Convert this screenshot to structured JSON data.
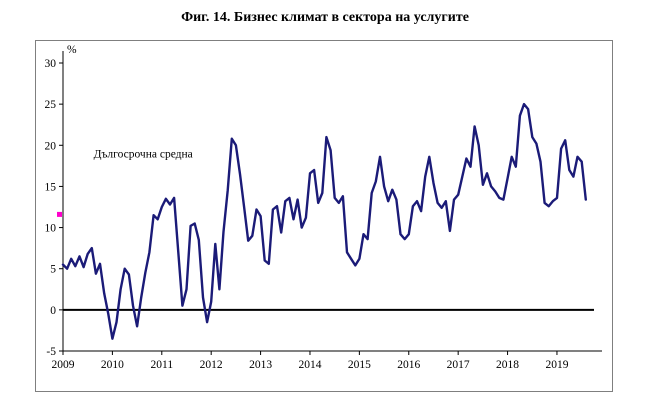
{
  "page": {
    "title": "Фиг. 14. Бизнес климат в сектора на услугите"
  },
  "colors": {
    "series_line": "#1b1b78",
    "axis": "#000000",
    "zero_line": "#000000",
    "frame": "#7f7f7f",
    "long_term_marker": "#ff00cc",
    "background": "#ffffff"
  },
  "chart_data": {
    "type": "line",
    "title": "Фиг. 14. Бизнес климат в сектора на услугите",
    "ylabel": "%",
    "xlabel": "",
    "ylim": [
      -5,
      30
    ],
    "ytick_step": 5,
    "y_tick_labels": [
      "-5",
      "0",
      "5",
      "10",
      "15",
      "20",
      "25",
      "30"
    ],
    "x_tick_labels": [
      "2009",
      "2010",
      "2011",
      "2012",
      "2013",
      "2014",
      "2015",
      "2016",
      "2017",
      "2018",
      "2019"
    ],
    "x_start_year": 2009,
    "x_end": 2019.75,
    "frequency": "monthly",
    "grid": false,
    "zero_line": true,
    "legend_position": "none",
    "annotation": {
      "text": "Дългосрочна средна",
      "x": 2009.62,
      "y": 18.5
    },
    "long_term_average_marker": {
      "y": 11.6,
      "color": "#ff00cc"
    },
    "series": [
      {
        "name": "Бизнес климат в сектора на услугите",
        "color": "#1b1b78",
        "start": "2009-01",
        "values": [
          5.5,
          5.0,
          6.2,
          5.3,
          6.5,
          5.2,
          6.8,
          7.5,
          4.4,
          5.6,
          2.0,
          -0.5,
          -3.5,
          -1.5,
          2.5,
          5.0,
          4.3,
          0.5,
          -2.0,
          1.5,
          4.5,
          7.0,
          11.5,
          11.0,
          12.5,
          13.5,
          12.8,
          13.6,
          7.0,
          0.5,
          2.5,
          10.2,
          10.5,
          8.5,
          1.5,
          -1.5,
          1.0,
          8.0,
          2.5,
          9.5,
          14.5,
          20.8,
          20.0,
          16.5,
          12.5,
          8.4,
          9.0,
          12.2,
          11.4,
          6.0,
          5.6,
          12.2,
          12.6,
          9.4,
          13.2,
          13.6,
          11.0,
          13.4,
          10.0,
          11.2,
          16.6,
          17.0,
          13.0,
          14.2,
          21.0,
          19.4,
          13.6,
          13.0,
          13.8,
          7.0,
          6.2,
          5.4,
          6.2,
          9.2,
          8.6,
          14.2,
          15.6,
          18.6,
          15.0,
          13.2,
          14.6,
          13.4,
          9.2,
          8.6,
          9.2,
          12.6,
          13.2,
          12.0,
          16.2,
          18.6,
          15.4,
          13.0,
          12.4,
          13.2,
          9.6,
          13.4,
          14.0,
          16.2,
          18.4,
          17.4,
          22.3,
          20.0,
          15.2,
          16.6,
          15.0,
          14.4,
          13.6,
          13.4,
          16.0,
          18.6,
          17.4,
          23.6,
          25.0,
          24.4,
          21.0,
          20.2,
          18.0,
          13.0,
          12.6,
          13.2,
          13.6,
          19.6,
          20.6,
          17.0,
          16.2,
          18.6,
          18.0,
          13.4
        ]
      }
    ]
  }
}
